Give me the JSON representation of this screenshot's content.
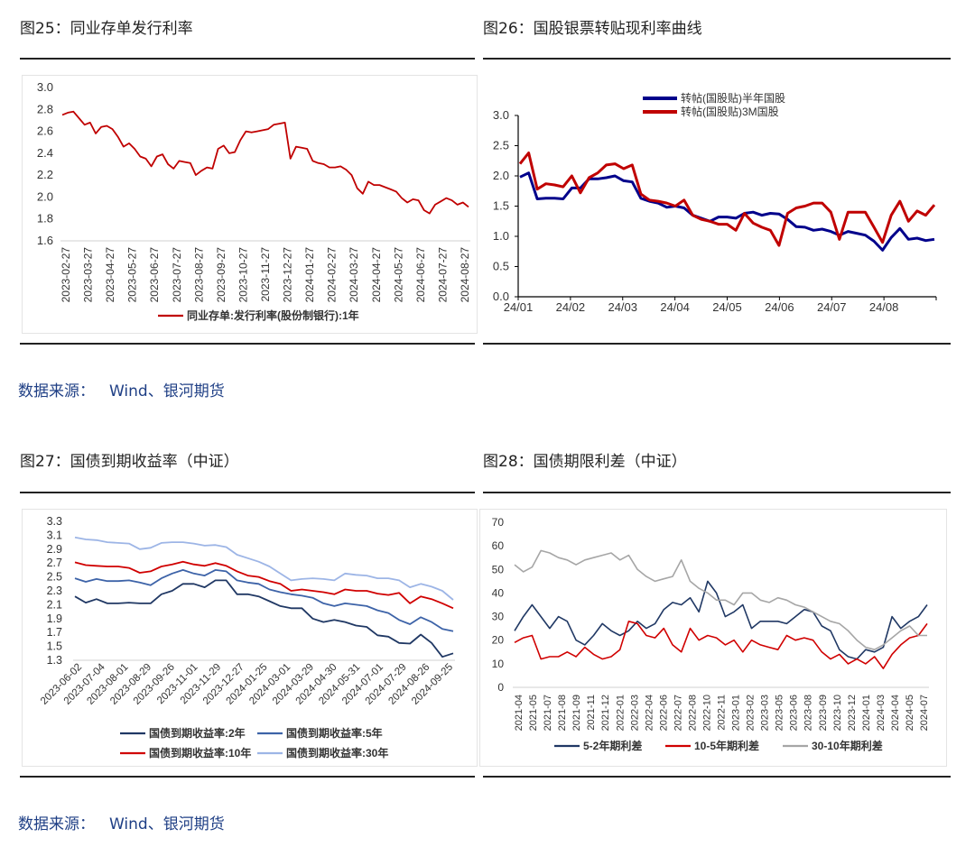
{
  "figures": {
    "fig25": {
      "title": "图25：同业存单发行利率"
    },
    "fig26": {
      "title": "图26：国股银票转贴现利率曲线"
    },
    "fig27": {
      "title": "图27：国债到期收益率（中证）"
    },
    "fig28": {
      "title": "图28：国债期限利差（中证）"
    }
  },
  "sources": [
    {
      "label": "数据来源：",
      "value": "Wind、银河期货"
    },
    {
      "label": "数据来源：",
      "value": "Wind、银河期货"
    }
  ],
  "chart_data": [
    {
      "type": "line",
      "title": "",
      "ylim": [
        1.6,
        3.0
      ],
      "yticks": [
        "3.0",
        "2.8",
        "2.6",
        "2.4",
        "2.2",
        "2.0",
        "1.8",
        "1.6"
      ],
      "xticks": [
        "2023-02-27",
        "2023-03-27",
        "2023-04-27",
        "2023-05-27",
        "2023-06-27",
        "2023-07-27",
        "2023-08-27",
        "2023-09-27",
        "2023-10-27",
        "2023-11-27",
        "2023-12-27",
        "2024-01-27",
        "2024-02-27",
        "2024-03-27",
        "2024-04-27",
        "2024-05-27",
        "2024-06-27",
        "2024-07-27",
        "2024-08-27"
      ],
      "legend": "bottom",
      "series": [
        {
          "name": "同业存单:发行利率(股份制银行):1年",
          "color": "#c00000",
          "values": [
            2.75,
            2.77,
            2.78,
            2.72,
            2.66,
            2.68,
            2.58,
            2.64,
            2.65,
            2.62,
            2.55,
            2.46,
            2.49,
            2.44,
            2.37,
            2.35,
            2.28,
            2.37,
            2.39,
            2.3,
            2.26,
            2.33,
            2.32,
            2.31,
            2.2,
            2.24,
            2.27,
            2.26,
            2.44,
            2.47,
            2.4,
            2.41,
            2.52,
            2.6,
            2.59,
            2.6,
            2.61,
            2.62,
            2.66,
            2.67,
            2.68,
            2.35,
            2.46,
            2.45,
            2.44,
            2.33,
            2.31,
            2.3,
            2.27,
            2.27,
            2.28,
            2.25,
            2.2,
            2.08,
            2.03,
            2.14,
            2.11,
            2.11,
            2.09,
            2.07,
            2.05,
            1.99,
            1.95,
            1.98,
            1.97,
            1.88,
            1.85,
            1.93,
            1.96,
            1.99,
            1.97,
            1.93,
            1.95,
            1.91
          ]
        }
      ]
    },
    {
      "type": "line",
      "title": "",
      "ylim": [
        0,
        3.0
      ],
      "yticks": [
        "3.0",
        "2.5",
        "2.0",
        "1.5",
        "1.0",
        "0.5",
        "0.0"
      ],
      "xticks": [
        "24/01",
        "24/02",
        "24/03",
        "24/04",
        "24/05",
        "24/06",
        "24/07",
        "24/08"
      ],
      "legend": "top",
      "series": [
        {
          "name": "转帖(国股贴)半年国股",
          "color": "#00008b",
          "values": [
            1.98,
            2.05,
            1.62,
            1.63,
            1.63,
            1.62,
            1.8,
            1.8,
            1.95,
            1.95,
            1.97,
            2.0,
            1.92,
            1.9,
            1.63,
            1.58,
            1.55,
            1.48,
            1.5,
            1.47,
            1.35,
            1.3,
            1.25,
            1.32,
            1.32,
            1.3,
            1.38,
            1.4,
            1.35,
            1.38,
            1.37,
            1.28,
            1.16,
            1.15,
            1.1,
            1.12,
            1.08,
            1.02,
            1.08,
            1.05,
            1.02,
            0.92,
            0.77,
            0.98,
            1.13,
            0.95,
            0.97,
            0.93,
            0.95
          ]
        },
        {
          "name": "转帖(国股贴)3M国股",
          "color": "#c00000",
          "values": [
            2.2,
            2.38,
            1.78,
            1.87,
            1.85,
            1.82,
            2.0,
            1.72,
            1.97,
            2.05,
            2.18,
            2.2,
            2.12,
            2.18,
            1.7,
            1.6,
            1.58,
            1.55,
            1.5,
            1.6,
            1.35,
            1.28,
            1.25,
            1.2,
            1.2,
            1.1,
            1.38,
            1.22,
            1.15,
            1.1,
            0.85,
            1.38,
            1.47,
            1.5,
            1.55,
            1.55,
            1.4,
            0.95,
            1.4,
            1.4,
            1.4,
            1.15,
            0.9,
            1.35,
            1.58,
            1.25,
            1.42,
            1.35,
            1.52
          ]
        }
      ]
    },
    {
      "type": "line",
      "title": "",
      "ylim": [
        1.3,
        3.3
      ],
      "yticks": [
        "3.3",
        "3.1",
        "2.9",
        "2.7",
        "2.5",
        "2.3",
        "2.1",
        "1.9",
        "1.7",
        "1.5",
        "1.3"
      ],
      "xticks": [
        "2023-06-02",
        "2023-07-04",
        "2023-08-01",
        "2023-08-29",
        "2023-09-26",
        "2023-11-01",
        "2023-11-29",
        "2023-12-27",
        "2024-01-25",
        "2024-03-01",
        "2024-03-29",
        "2024-04-30",
        "2024-05-31",
        "2024-07-01",
        "2024-07-29",
        "2024-08-26",
        "2024-09-25"
      ],
      "legend": "bottom",
      "series": [
        {
          "name": "国债到期收益率:2年",
          "color": "#203864",
          "values": [
            2.22,
            2.13,
            2.18,
            2.12,
            2.12,
            2.13,
            2.12,
            2.12,
            2.25,
            2.3,
            2.4,
            2.4,
            2.35,
            2.45,
            2.45,
            2.25,
            2.25,
            2.22,
            2.15,
            2.08,
            2.05,
            2.05,
            1.9,
            1.85,
            1.88,
            1.85,
            1.8,
            1.78,
            1.66,
            1.64,
            1.55,
            1.54,
            1.67,
            1.55,
            1.35,
            1.4
          ]
        },
        {
          "name": "国债到期收益率:5年",
          "color": "#3d63a8",
          "values": [
            2.48,
            2.43,
            2.47,
            2.44,
            2.44,
            2.45,
            2.42,
            2.38,
            2.48,
            2.55,
            2.6,
            2.55,
            2.52,
            2.6,
            2.58,
            2.45,
            2.42,
            2.4,
            2.32,
            2.28,
            2.25,
            2.23,
            2.2,
            2.12,
            2.08,
            2.12,
            2.1,
            2.08,
            2.02,
            1.98,
            1.88,
            1.82,
            1.92,
            1.85,
            1.75,
            1.72
          ]
        },
        {
          "name": "国债到期收益率:10年",
          "color": "#d00000",
          "values": [
            2.71,
            2.67,
            2.66,
            2.65,
            2.65,
            2.63,
            2.56,
            2.58,
            2.65,
            2.68,
            2.72,
            2.68,
            2.66,
            2.7,
            2.66,
            2.58,
            2.52,
            2.5,
            2.44,
            2.4,
            2.3,
            2.32,
            2.3,
            2.28,
            2.25,
            2.32,
            2.3,
            2.3,
            2.26,
            2.24,
            2.27,
            2.12,
            2.22,
            2.18,
            2.12,
            2.05
          ]
        },
        {
          "name": "国债到期收益率:30年",
          "color": "#9db5e6",
          "values": [
            3.07,
            3.04,
            3.03,
            3.0,
            2.99,
            2.98,
            2.9,
            2.92,
            2.99,
            3.0,
            3.0,
            2.98,
            2.95,
            2.96,
            2.93,
            2.82,
            2.77,
            2.72,
            2.65,
            2.55,
            2.45,
            2.47,
            2.48,
            2.47,
            2.45,
            2.55,
            2.53,
            2.52,
            2.48,
            2.48,
            2.45,
            2.35,
            2.4,
            2.36,
            2.3,
            2.17
          ]
        }
      ]
    },
    {
      "type": "line",
      "title": "",
      "ylim": [
        0,
        70
      ],
      "yticks": [
        "70",
        "60",
        "50",
        "40",
        "30",
        "20",
        "10",
        "0"
      ],
      "xticks": [
        "2021-04",
        "2021-05",
        "2021-07",
        "2021-08",
        "2021-09",
        "2021-11",
        "2021-12",
        "2022-01",
        "2022-03",
        "2022-04",
        "2022-06",
        "2022-07",
        "2022-08",
        "2022-10",
        "2022-11",
        "2023-01",
        "2023-02",
        "2023-03",
        "2023-05",
        "2023-06",
        "2023-08",
        "2023-09",
        "2023-10",
        "2023-12",
        "2024-01",
        "2024-03",
        "2024-04",
        "2024-05",
        "2024-07"
      ],
      "legend": "bottom",
      "series": [
        {
          "name": "5-2年期利差",
          "color": "#203864",
          "values": [
            24,
            30,
            35,
            30,
            25,
            30,
            28,
            20,
            18,
            22,
            27,
            24,
            22,
            24,
            28,
            25,
            27,
            33,
            36,
            35,
            38,
            32,
            45,
            40,
            30,
            32,
            35,
            25,
            28,
            28,
            28,
            27,
            30,
            33,
            32,
            26,
            24,
            16,
            13,
            12,
            16,
            15,
            17,
            30,
            25,
            28,
            30,
            35
          ]
        },
        {
          "name": "10-5年期利差",
          "color": "#d00000",
          "values": [
            19,
            21,
            22,
            12,
            13,
            13,
            15,
            13,
            17,
            14,
            12,
            13,
            16,
            28,
            27,
            22,
            21,
            25,
            18,
            15,
            25,
            20,
            22,
            21,
            18,
            20,
            15,
            20,
            18,
            17,
            16,
            22,
            20,
            21,
            20,
            15,
            12,
            14,
            10,
            12,
            10,
            13,
            8,
            14,
            18,
            21,
            22,
            27
          ]
        },
        {
          "name": "30-10年期利差",
          "color": "#a6a6a6",
          "values": [
            52,
            49,
            51,
            58,
            57,
            55,
            54,
            52,
            54,
            55,
            56,
            57,
            54,
            56,
            50,
            47,
            45,
            46,
            47,
            54,
            45,
            42,
            40,
            37,
            37,
            35,
            40,
            40,
            37,
            36,
            38,
            37,
            35,
            34,
            32,
            30,
            28,
            27,
            24,
            20,
            17,
            16,
            18,
            21,
            24,
            26,
            22,
            22
          ]
        }
      ]
    }
  ]
}
